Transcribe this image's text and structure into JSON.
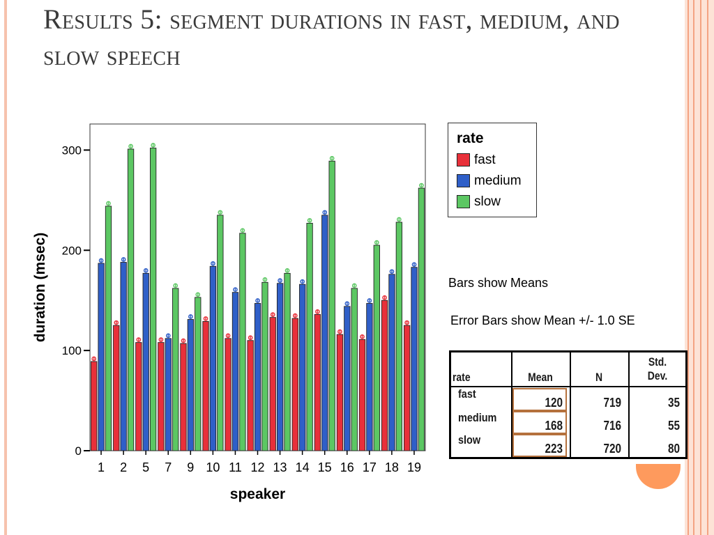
{
  "slide": {
    "title": "Results 5: segment durations in fast, medium, and slow speech"
  },
  "chart_data": {
    "type": "bar",
    "xlabel": "speaker",
    "ylabel": "duration (msec)",
    "ylim": [
      0,
      326
    ],
    "yticks": [
      0,
      100,
      200,
      300
    ],
    "categories": [
      "1",
      "2",
      "5",
      "7",
      "9",
      "10",
      "11",
      "12",
      "13",
      "14",
      "15",
      "16",
      "17",
      "18",
      "19"
    ],
    "series": [
      {
        "name": "fast",
        "color": "#e8303a",
        "values": [
          89,
          125,
          108,
          108,
          107,
          129,
          112,
          110,
          133,
          132,
          136,
          116,
          111,
          150,
          125
        ]
      },
      {
        "name": "medium",
        "color": "#2f5fc8",
        "values": [
          187,
          188,
          177,
          112,
          131,
          184,
          158,
          147,
          167,
          166,
          235,
          144,
          147,
          176,
          183
        ]
      },
      {
        "name": "slow",
        "color": "#5cc763",
        "values": [
          244,
          301,
          302,
          162,
          153,
          235,
          217,
          168,
          177,
          227,
          289,
          162,
          205,
          228,
          262
        ]
      }
    ],
    "error_bars": "Mean +/- 1.0 SE",
    "legend": {
      "title": "rate",
      "placement": "right"
    },
    "grid": false
  },
  "notes": {
    "bars_show": "Bars show Means",
    "error_bars": "Error Bars show Mean +/- 1.0 SE"
  },
  "stats_table": {
    "headers": {
      "rate": "rate",
      "mean": "Mean",
      "n": "N",
      "sd_line1": "Std.",
      "sd_line2": "Dev."
    },
    "rows": [
      {
        "rate": "fast",
        "mean": "120",
        "n": "719",
        "sd": "35"
      },
      {
        "rate": "medium",
        "mean": "168",
        "n": "716",
        "sd": "55"
      },
      {
        "rate": "slow",
        "mean": "223",
        "n": "720",
        "sd": "80"
      }
    ]
  }
}
